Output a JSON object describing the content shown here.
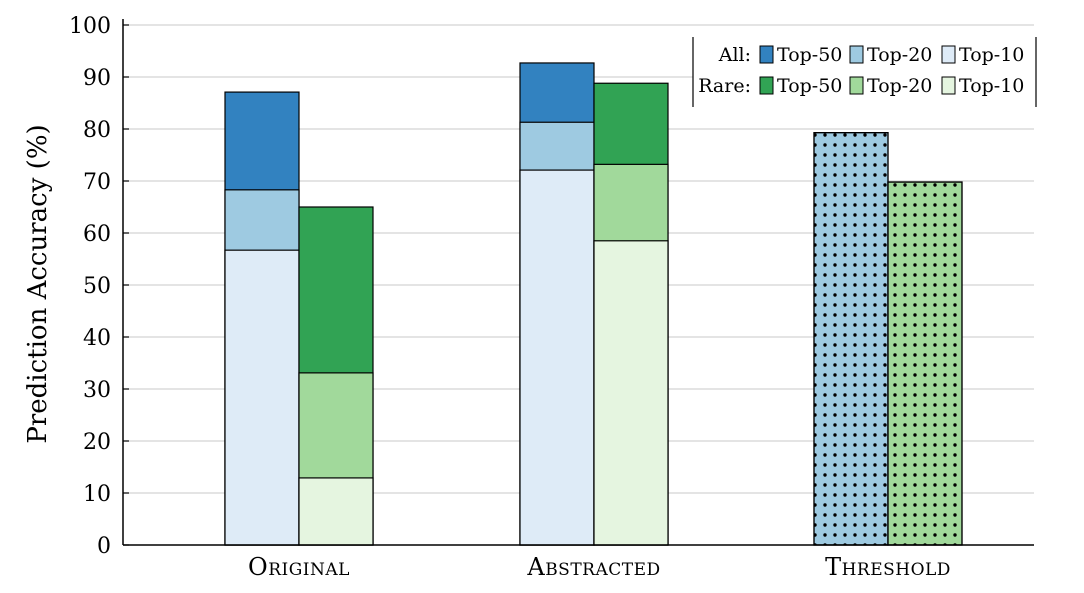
{
  "chart_data": {
    "type": "bar",
    "stacked": true,
    "ylabel": "Prediction Accuracy (%)",
    "xlabel": "",
    "ylim": [
      0,
      100
    ],
    "yticks": [
      0,
      10,
      20,
      30,
      40,
      50,
      60,
      70,
      80,
      90,
      100
    ],
    "grid": true,
    "legend_position": "top-right",
    "categories": [
      "Original",
      "Abstracted",
      "Threshold"
    ],
    "groups": [
      {
        "category": "Original",
        "bars": [
          {
            "set": "All",
            "stack": [
              {
                "level": "Top-10",
                "value": 56.7
              },
              {
                "level": "Top-20",
                "value": 68.3
              },
              {
                "level": "Top-50",
                "value": 87.1
              }
            ]
          },
          {
            "set": "Rare",
            "stack": [
              {
                "level": "Top-10",
                "value": 12.9
              },
              {
                "level": "Top-20",
                "value": 33.1
              },
              {
                "level": "Top-50",
                "value": 65.0
              }
            ]
          }
        ]
      },
      {
        "category": "Abstracted",
        "bars": [
          {
            "set": "All",
            "stack": [
              {
                "level": "Top-10",
                "value": 72.1
              },
              {
                "level": "Top-20",
                "value": 81.3
              },
              {
                "level": "Top-50",
                "value": 92.7
              }
            ]
          },
          {
            "set": "Rare",
            "stack": [
              {
                "level": "Top-10",
                "value": 58.5
              },
              {
                "level": "Top-20",
                "value": 73.2
              },
              {
                "level": "Top-50",
                "value": 88.8
              }
            ]
          }
        ]
      },
      {
        "category": "Threshold",
        "bars": [
          {
            "set": "All",
            "pattern": "dots",
            "stack": [
              {
                "level": "Top-20",
                "value": 79.3
              }
            ]
          },
          {
            "set": "Rare",
            "pattern": "dots",
            "stack": [
              {
                "level": "Top-20",
                "value": 69.8
              }
            ]
          }
        ]
      }
    ],
    "legend": {
      "rows": [
        {
          "label": "All:",
          "set": "All",
          "entries": [
            "Top-50",
            "Top-20",
            "Top-10"
          ]
        },
        {
          "label": "Rare:",
          "set": "Rare",
          "entries": [
            "Top-50",
            "Top-20",
            "Top-10"
          ]
        }
      ]
    },
    "colors": {
      "All": {
        "Top-50": "#3282c0",
        "Top-20": "#9ecae1",
        "Top-10": "#deebf7"
      },
      "Rare": {
        "Top-50": "#31a354",
        "Top-20": "#a1d99b",
        "Top-10": "#e5f5e0"
      }
    },
    "grid_color": "#c8c8c8"
  }
}
